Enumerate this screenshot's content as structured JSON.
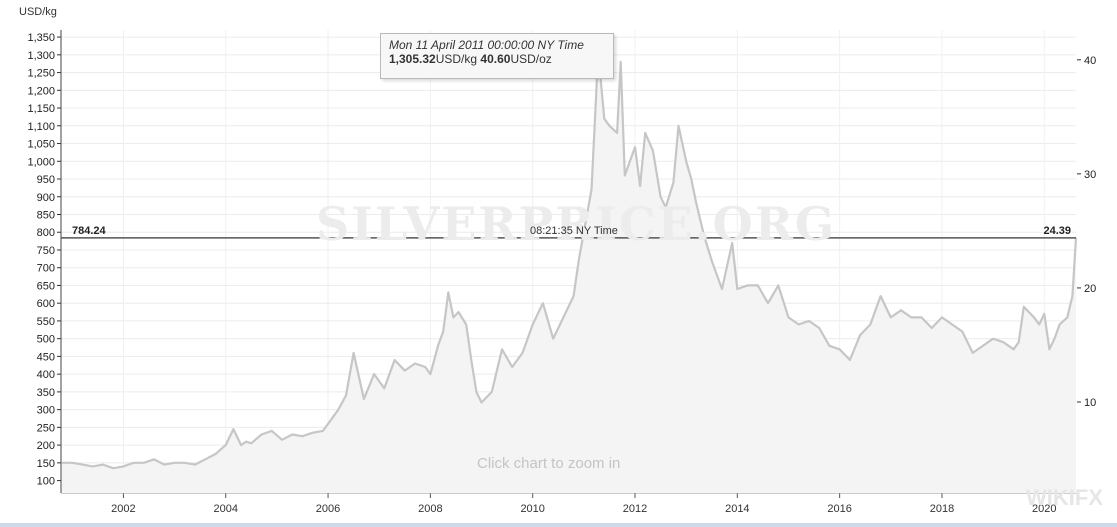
{
  "chart_data": {
    "type": "area",
    "unit_left": "USD/kg",
    "unit_right": "USD/oz",
    "y_left_ticks": [
      "100",
      "150",
      "200",
      "250",
      "300",
      "350",
      "400",
      "450",
      "500",
      "550",
      "600",
      "650",
      "700",
      "750",
      "800",
      "850",
      "900",
      "950",
      "1,000",
      "1,050",
      "1,100",
      "1,150",
      "1,200",
      "1,250",
      "1,300",
      "1,350"
    ],
    "y_right_ticks": [
      "10",
      "20",
      "30",
      "40"
    ],
    "x_ticks": [
      "2002",
      "2004",
      "2006",
      "2008",
      "2010",
      "2012",
      "2014",
      "2016",
      "2018",
      "2020"
    ],
    "ylim": [
      65,
      1370
    ],
    "xlim": [
      2000.78,
      2020.62
    ],
    "series": [
      {
        "x": [
          2000.8,
          2001.0,
          2001.2,
          2001.4,
          2001.6,
          2001.8,
          2002.0,
          2002.2,
          2002.4,
          2002.6,
          2002.8,
          2003.0,
          2003.2,
          2003.4,
          2003.6,
          2003.8,
          2004.0,
          2004.15,
          2004.3,
          2004.4,
          2004.5,
          2004.7,
          2004.9,
          2005.1,
          2005.3,
          2005.5,
          2005.7,
          2005.9,
          2006.0,
          2006.2,
          2006.35,
          2006.5,
          2006.7,
          2006.9,
          2007.1,
          2007.3,
          2007.5,
          2007.7,
          2007.9,
          2008.0,
          2008.15,
          2008.25,
          2008.35,
          2008.45,
          2008.55,
          2008.7,
          2008.8,
          2008.9,
          2009.0,
          2009.2,
          2009.4,
          2009.6,
          2009.8,
          2010.0,
          2010.2,
          2010.4,
          2010.6,
          2010.8,
          2010.9,
          2011.0,
          2011.15,
          2011.28,
          2011.4,
          2011.5,
          2011.65,
          2011.72,
          2011.8,
          2012.0,
          2012.1,
          2012.2,
          2012.35,
          2012.5,
          2012.6,
          2012.75,
          2012.85,
          2013.0,
          2013.1,
          2013.2,
          2013.35,
          2013.5,
          2013.7,
          2013.9,
          2014.0,
          2014.2,
          2014.4,
          2014.6,
          2014.8,
          2015.0,
          2015.2,
          2015.4,
          2015.6,
          2015.8,
          2016.0,
          2016.2,
          2016.4,
          2016.6,
          2016.8,
          2017.0,
          2017.2,
          2017.4,
          2017.6,
          2017.8,
          2018.0,
          2018.2,
          2018.4,
          2018.6,
          2018.8,
          2019.0,
          2019.2,
          2019.4,
          2019.5,
          2019.6,
          2019.8,
          2019.9,
          2020.0,
          2020.1,
          2020.2,
          2020.3,
          2020.45,
          2020.55,
          2020.62
        ],
        "values": [
          150,
          150,
          145,
          140,
          145,
          135,
          140,
          150,
          150,
          160,
          145,
          150,
          150,
          145,
          160,
          175,
          200,
          245,
          200,
          210,
          205,
          230,
          240,
          215,
          230,
          225,
          235,
          240,
          260,
          300,
          340,
          460,
          330,
          400,
          360,
          440,
          410,
          430,
          420,
          400,
          480,
          520,
          630,
          560,
          575,
          540,
          440,
          350,
          320,
          350,
          470,
          420,
          460,
          540,
          600,
          500,
          560,
          620,
          720,
          800,
          920,
          1305,
          1120,
          1100,
          1080,
          1280,
          960,
          1040,
          930,
          1080,
          1030,
          900,
          870,
          940,
          1100,
          1000,
          950,
          880,
          790,
          720,
          640,
          770,
          640,
          650,
          650,
          600,
          650,
          560,
          540,
          550,
          530,
          480,
          470,
          440,
          510,
          540,
          620,
          560,
          580,
          560,
          560,
          530,
          560,
          540,
          520,
          460,
          480,
          500,
          490,
          470,
          490,
          590,
          560,
          540,
          570,
          470,
          500,
          540,
          560,
          620,
          784.24
        ]
      }
    ],
    "tooltip": {
      "date": "Mon 11 April 2011 00:00:00 NY Time",
      "value_kg": "1,305.32",
      "unit_kg": "USD/kg",
      "value_oz": "40.60",
      "unit_oz": "USD/oz",
      "x": 2011.28,
      "y": 1305.32
    },
    "current": {
      "value_kg": "784.24",
      "value_oz": "24.39",
      "time": "08:21:35 NY Time",
      "y": 784.24
    },
    "watermark": "SILVERPRICE.ORG",
    "zoom_hint": "Click chart to zoom in",
    "line_color": "#c6c6c6",
    "fill_color": "#f4f4f4",
    "grid": true
  },
  "footer_mark": "WIKIFX"
}
